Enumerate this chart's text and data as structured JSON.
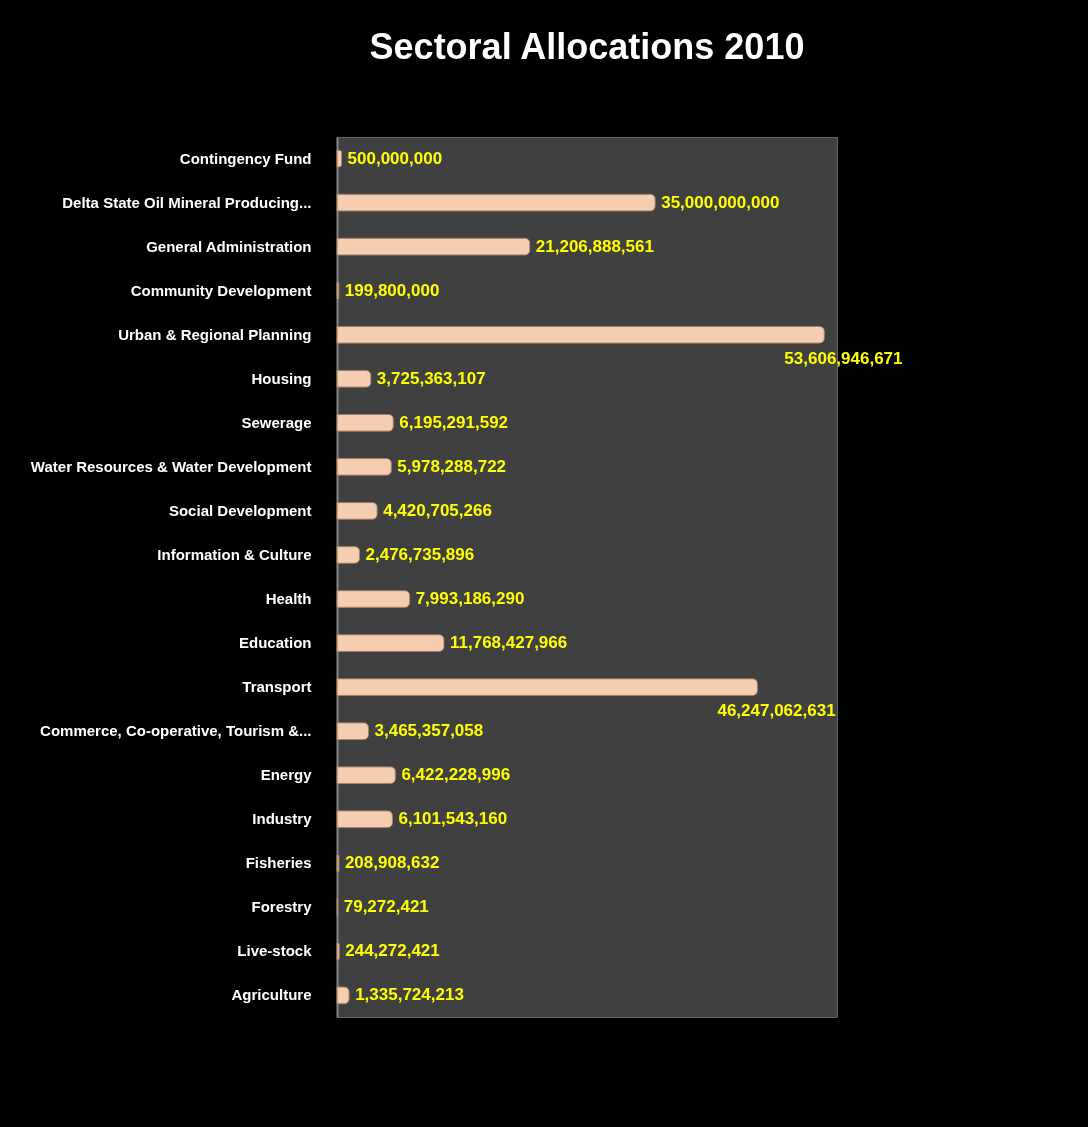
{
  "chart_data": {
    "type": "bar",
    "orientation": "horizontal",
    "title": "Sectoral Allocations 2010",
    "categories": [
      "Contingency Fund",
      "Delta State Oil Mineral Producing...",
      "General Administration",
      "Community Development",
      "Urban & Regional Planning",
      "Housing",
      "Sewerage",
      "Water Resources & Water Development",
      "Social Development",
      "Information & Culture",
      "Health",
      "Education",
      "Transport",
      "Commerce, Co-operative, Tourism &...",
      "Energy",
      "Industry",
      "Fisheries",
      "Forestry",
      "Live-stock",
      "Agriculture"
    ],
    "values": [
      500000000,
      35000000000,
      21206888561,
      199800000,
      53606946671,
      3725363107,
      6195291592,
      5978288722,
      4420705266,
      2476735896,
      7993186290,
      11768427966,
      46247062631,
      3465357058,
      6422228996,
      6101543160,
      208908632,
      79272421,
      244272421,
      1335724213
    ],
    "value_labels": [
      "500,000,000",
      "35,000,000,000",
      "21,206,888,561",
      "199,800,000",
      "53,606,946,671",
      "3,725,363,107",
      "6,195,291,592",
      "5,978,288,722",
      "4,420,705,266",
      "2,476,735,896",
      "7,993,186,290",
      "11,768,427,966",
      "46,247,062,631",
      "3,465,357,058",
      "6,422,228,996",
      "6,101,543,160",
      "208,908,632",
      "79,272,421",
      "244,272,421",
      "1,335,724,213"
    ],
    "color": "#f7cdb0"
  }
}
